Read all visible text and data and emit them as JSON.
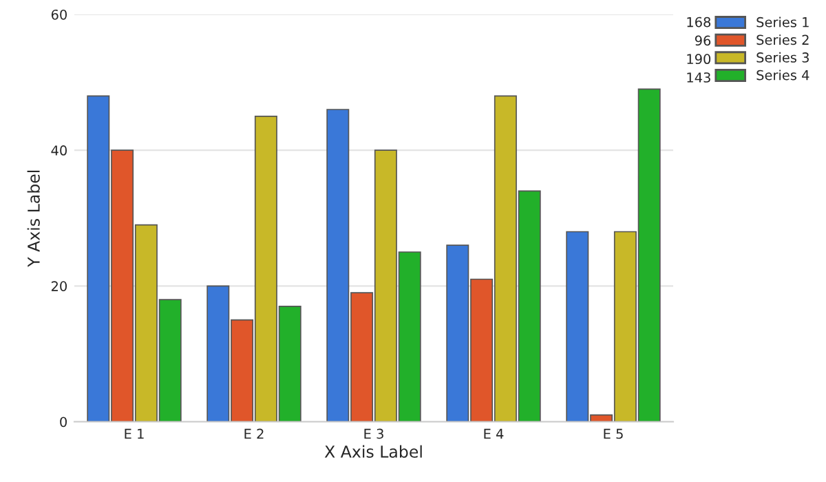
{
  "chart_data": {
    "type": "bar",
    "xlabel": "X Axis Label",
    "ylabel": "Y Axis Label",
    "categories": [
      "E 1",
      "E 2",
      "E 3",
      "E 4",
      "E 5"
    ],
    "series": [
      {
        "name": "Series 1",
        "color": "#3a78d8",
        "values": [
          48,
          20,
          46,
          26,
          28
        ]
      },
      {
        "name": "Series 2",
        "color": "#e0562a",
        "values": [
          40,
          15,
          19,
          21,
          1
        ]
      },
      {
        "name": "Series 3",
        "color": "#c8b828",
        "values": [
          29,
          45,
          40,
          48,
          28
        ]
      },
      {
        "name": "Series 4",
        "color": "#22b02a",
        "values": [
          18,
          17,
          25,
          34,
          49
        ]
      }
    ],
    "annotations": [
      "168",
      "96",
      "190",
      "143"
    ],
    "ylim": [
      0,
      60
    ],
    "yticks": [
      0,
      20,
      40,
      60
    ],
    "grid": "y",
    "legend": "top right"
  }
}
